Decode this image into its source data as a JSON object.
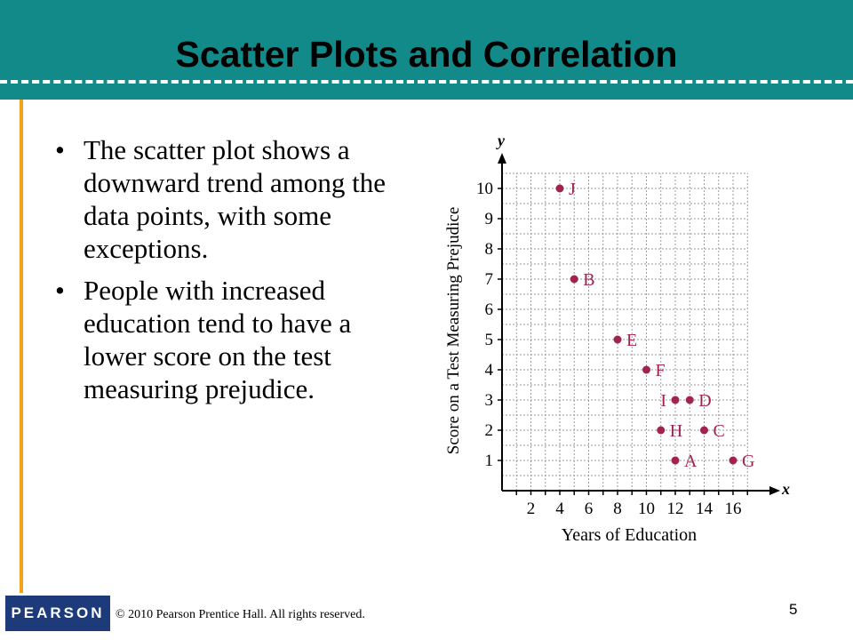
{
  "slide": {
    "title": "Scatter Plots and Correlation",
    "bullets": [
      "The scatter plot shows a downward trend among the data points, with some exceptions.",
      "People with increased education tend to have a lower score on the test measuring prejudice."
    ],
    "page_number": "5"
  },
  "footer": {
    "logo_text": "PEARSON",
    "copyright": "© 2010 Pearson Prentice Hall. All rights reserved."
  },
  "colors": {
    "header": "#138a8a",
    "accent_rule": "#f2a31b",
    "points": "#a0244e",
    "logo_bg": "#1d3b7b"
  },
  "chart_data": {
    "type": "scatter",
    "xlabel": "Years of Education",
    "ylabel": "Score on a Test Measuring Prejudice",
    "x_axis_letter": "x",
    "y_axis_letter": "y",
    "xlim": [
      0,
      17
    ],
    "ylim": [
      0,
      10
    ],
    "x_ticks": [
      2,
      4,
      6,
      8,
      10,
      12,
      14,
      16
    ],
    "y_ticks": [
      1,
      2,
      3,
      4,
      5,
      6,
      7,
      8,
      9,
      10
    ],
    "grid": true,
    "points": [
      {
        "label": "J",
        "x": 4,
        "y": 10
      },
      {
        "label": "B",
        "x": 5,
        "y": 7
      },
      {
        "label": "E",
        "x": 8,
        "y": 5
      },
      {
        "label": "F",
        "x": 10,
        "y": 4
      },
      {
        "label": "I",
        "x": 12,
        "y": 3
      },
      {
        "label": "D",
        "x": 13,
        "y": 3
      },
      {
        "label": "H",
        "x": 11,
        "y": 2
      },
      {
        "label": "C",
        "x": 14,
        "y": 2
      },
      {
        "label": "A",
        "x": 12,
        "y": 1
      },
      {
        "label": "G",
        "x": 16,
        "y": 1
      }
    ]
  }
}
